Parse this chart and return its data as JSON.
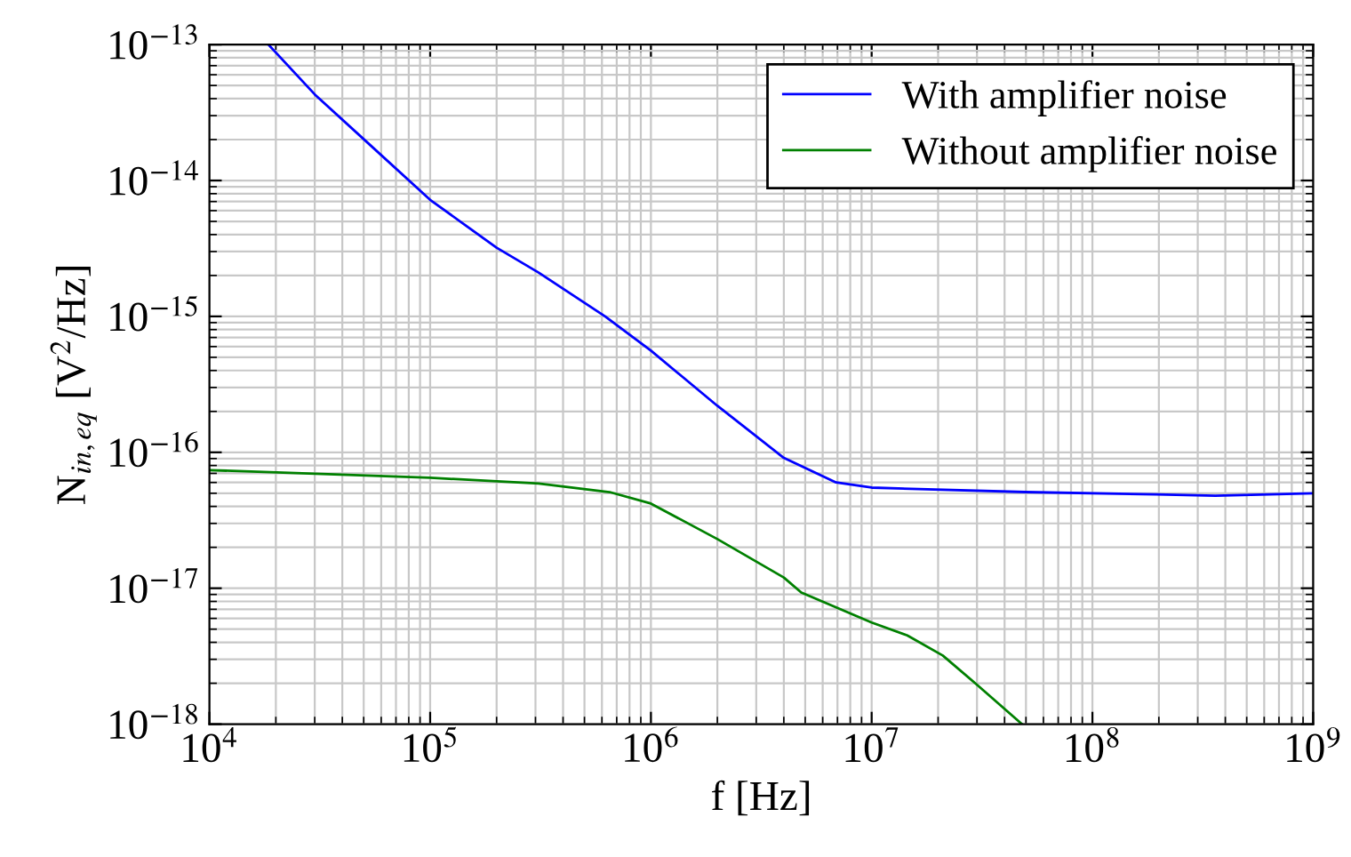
{
  "chart_data": {
    "type": "line",
    "xlabel": "f [Hz]",
    "ylabel": "N$_{in,eq}$ [V$^{2}$/Hz]",
    "log": "xy",
    "grid": true,
    "legend": "top right",
    "marker": "none",
    "line_style": "solid",
    "xlim": [
      10000.0,
      1000000000.0
    ],
    "ylim": [
      1e-18,
      1e-13
    ],
    "xticks": [
      {
        "value": 10000.0,
        "label": "10$^{4}$"
      },
      {
        "value": 100000.0,
        "label": "10$^{5}$"
      },
      {
        "value": 1000000.0,
        "label": "10$^{6}$"
      },
      {
        "value": 10000000.0,
        "label": "10$^{7}$"
      },
      {
        "value": 100000000.0,
        "label": "10$^{8}$"
      },
      {
        "value": 1000000000.0,
        "label": "10$^{9}$"
      }
    ],
    "yticks": [
      {
        "value": 1e-18,
        "label": "10$^{−18}$"
      },
      {
        "value": 1e-17,
        "label": "10$^{−17}$"
      },
      {
        "value": 1e-16,
        "label": "10$^{−16}$"
      },
      {
        "value": 1e-15,
        "label": "10$^{−15}$"
      },
      {
        "value": 1e-14,
        "label": "10$^{−14}$"
      },
      {
        "value": 1e-13,
        "label": "10$^{−13}$"
      }
    ],
    "series": [
      {
        "name": "With amplifier noise",
        "color": "#0000ff",
        "x": [
          18500.0,
          30000.0,
          52000.0,
          100000.0,
          200000.0,
          310000.0,
          620000.0,
          1000000.0,
          2000000.0,
          4000000.0,
          6900000.0,
          10000000.0,
          50000000.0,
          195000000.0,
          360000000.0,
          1000000000.0
        ],
        "values": [
          1e-13,
          4.3e-14,
          1.9e-14,
          7.2e-15,
          3.2e-15,
          2.1e-15,
          1e-15,
          5.6e-16,
          2.2e-16,
          9.1e-17,
          6e-17,
          5.5e-17,
          5.1e-17,
          4.9e-17,
          4.8e-17,
          5e-17
        ]
      },
      {
        "name": "Without amplifier noise",
        "color": "#008000",
        "x": [
          10000.0,
          100000.0,
          310000.0,
          650000.0,
          1000000.0,
          2000000.0,
          4000000.0,
          4800000.0,
          10000000.0,
          14500000.0,
          21000000.0,
          30000000.0,
          48000000.0
        ],
        "values": [
          7.4e-17,
          6.5e-17,
          5.9e-17,
          5.1e-17,
          4.2e-17,
          2.3e-17,
          1.2e-17,
          9.3e-18,
          5.6e-18,
          4.5e-18,
          3.2e-18,
          1.95e-18,
          1e-18
        ]
      }
    ]
  }
}
